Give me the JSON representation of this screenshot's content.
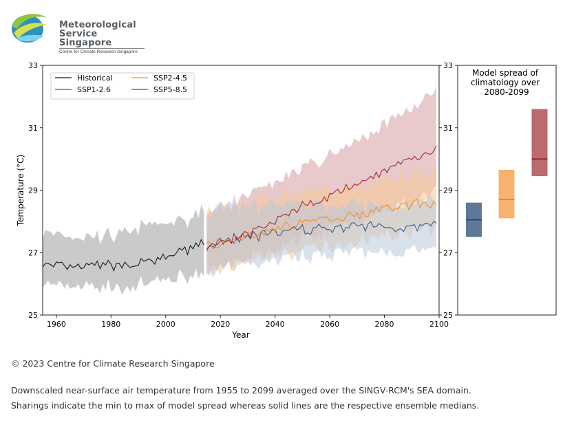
{
  "logo": {
    "line1": "Meteorological",
    "line2": "Service",
    "line3": "Singapore",
    "subtitle": "Centre for Climate Research Singapore"
  },
  "footer": {
    "copyright": "© 2023 Centre for Climate Research Singapore",
    "caption_line1": "Downscaled near-surface air temperature from 1955 to 2099 averaged over the SINGV-RCM's SEA domain.",
    "caption_line2": "Sharings indicate the min to max of model spread whereas solid lines are the respective ensemble medians."
  },
  "chart_data": [
    {
      "type": "line",
      "xlabel": "Year",
      "ylabel": "Temperature (°C)",
      "xlim": [
        1955,
        2100
      ],
      "ylim": [
        25,
        33
      ],
      "xticks": [
        1960,
        1980,
        2000,
        2020,
        2040,
        2060,
        2080,
        2100
      ],
      "yticks": [
        25,
        27,
        29,
        31,
        33
      ],
      "legend_position": "top-left",
      "grid": false,
      "series": [
        {
          "name": "Historical",
          "color": "#1a1a1a",
          "band_color": "#bdbdbd",
          "anchors": [
            [
              1955,
              26.6,
              26.0,
              27.6
            ],
            [
              1965,
              26.5,
              25.9,
              27.5
            ],
            [
              1975,
              26.6,
              25.9,
              27.5
            ],
            [
              1985,
              26.6,
              25.9,
              27.6
            ],
            [
              1995,
              26.7,
              26.0,
              27.9
            ],
            [
              2005,
              27.0,
              26.2,
              28.0
            ],
            [
              2014,
              27.3,
              26.4,
              28.3
            ]
          ]
        },
        {
          "name": "SSP1-2.6",
          "color": "#3b5b82",
          "band_color": "#b8c9dc",
          "anchors": [
            [
              2015,
              27.2,
              26.4,
              28.3
            ],
            [
              2030,
              27.5,
              26.6,
              28.5
            ],
            [
              2045,
              27.7,
              26.8,
              28.6
            ],
            [
              2060,
              27.8,
              27.0,
              28.5
            ],
            [
              2075,
              27.85,
              27.0,
              28.5
            ],
            [
              2090,
              27.8,
              27.0,
              28.6
            ],
            [
              2099,
              27.9,
              27.1,
              28.7
            ]
          ]
        },
        {
          "name": "SSP2-4.5",
          "color": "#f0902a",
          "band_color": "#f8c894",
          "anchors": [
            [
              2015,
              27.2,
              26.4,
              28.3
            ],
            [
              2030,
              27.5,
              26.7,
              28.6
            ],
            [
              2045,
              27.9,
              27.0,
              28.9
            ],
            [
              2060,
              28.1,
              27.2,
              29.0
            ],
            [
              2075,
              28.3,
              27.5,
              29.2
            ],
            [
              2090,
              28.55,
              27.7,
              29.5
            ],
            [
              2099,
              28.6,
              27.8,
              29.6
            ]
          ]
        },
        {
          "name": "SSP5-8.5",
          "color": "#a52a32",
          "band_color": "#d59fa3",
          "anchors": [
            [
              2015,
              27.2,
              26.4,
              28.3
            ],
            [
              2030,
              27.6,
              26.8,
              28.8
            ],
            [
              2045,
              28.3,
              27.3,
              29.5
            ],
            [
              2060,
              28.8,
              27.7,
              30.1
            ],
            [
              2075,
              29.4,
              28.2,
              30.8
            ],
            [
              2090,
              29.95,
              28.6,
              31.6
            ],
            [
              2099,
              30.3,
              29.0,
              32.2
            ]
          ]
        }
      ]
    },
    {
      "type": "bar",
      "title": "Model spread of climatology over 2080-2099",
      "ylim": [
        25,
        33
      ],
      "yticks": [
        25,
        27,
        29,
        31,
        33
      ],
      "boxes": [
        {
          "name": "SSP1-2.6",
          "min": 27.5,
          "median": 28.05,
          "max": 28.6,
          "color": "#5d7898",
          "median_color": "#1f3f66"
        },
        {
          "name": "SSP2-4.5",
          "min": 28.1,
          "median": 28.7,
          "max": 29.65,
          "color": "#f6b36d",
          "median_color": "#e57a1c"
        },
        {
          "name": "SSP5-8.5",
          "min": 29.45,
          "median": 30.0,
          "max": 31.6,
          "color": "#bb6a70",
          "median_color": "#8c1a24"
        }
      ]
    }
  ]
}
